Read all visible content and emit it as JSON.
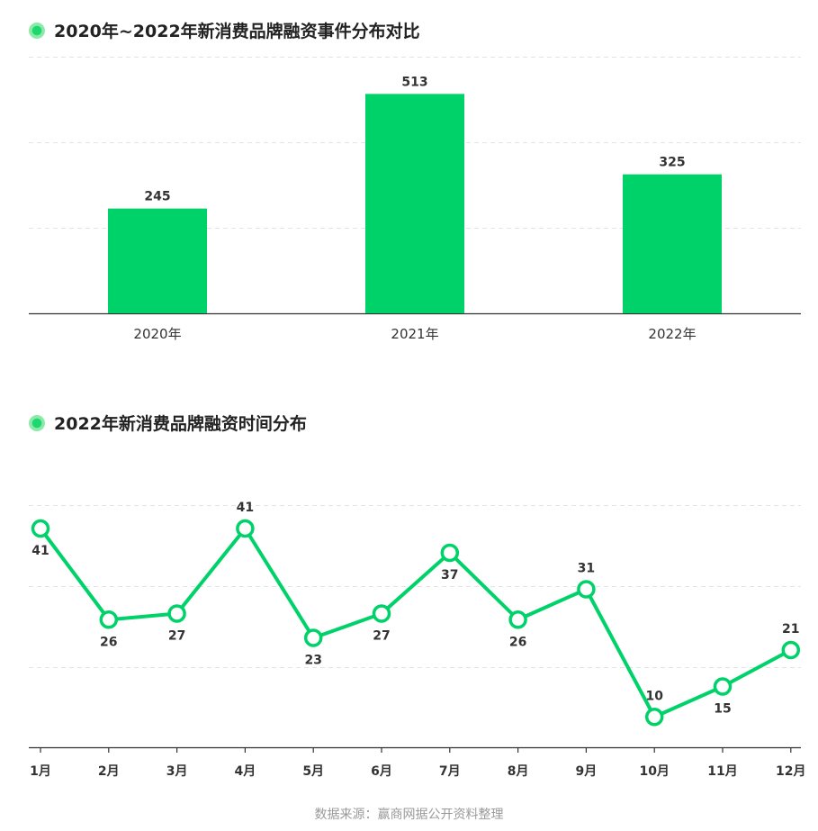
{
  "footer": {
    "source": "数据来源：赢商网据公开资料整理"
  },
  "colors": {
    "accent": "#00d26a",
    "grid": "#e3e3e3",
    "axis": "#333333",
    "text": "#333333",
    "footer": "#9a9a9a"
  },
  "chart_data": [
    {
      "type": "bar",
      "title": "2020年~2022年新消费品牌融资事件分布对比",
      "categories": [
        "2020年",
        "2021年",
        "2022年"
      ],
      "values": [
        245,
        513,
        325
      ],
      "ylim": [
        0,
        600
      ],
      "grid": true,
      "legend": "none"
    },
    {
      "type": "line",
      "title": "2022年新消费品牌融资时间分布",
      "categories": [
        "1月",
        "2月",
        "3月",
        "4月",
        "5月",
        "6月",
        "7月",
        "8月",
        "9月",
        "10月",
        "11月",
        "12月"
      ],
      "values": [
        41,
        26,
        27,
        41,
        23,
        27,
        37,
        26,
        31,
        10,
        15,
        21
      ],
      "label_positions": [
        "below",
        "below",
        "below",
        "above",
        "below",
        "below",
        "below",
        "below",
        "above",
        "above",
        "below",
        "above"
      ],
      "ylim": [
        5,
        45
      ],
      "grid": true,
      "legend": "none"
    }
  ]
}
